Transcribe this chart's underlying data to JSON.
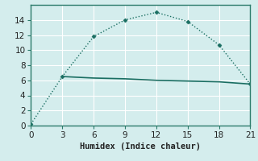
{
  "line1_x": [
    0,
    3,
    6,
    9,
    12,
    15,
    18,
    21
  ],
  "line1_y": [
    0.2,
    6.5,
    11.8,
    14.0,
    15.0,
    13.8,
    10.7,
    5.5
  ],
  "line2_x": [
    3,
    6,
    9,
    12,
    15,
    18,
    21
  ],
  "line2_y": [
    6.5,
    6.3,
    6.2,
    6.0,
    5.9,
    5.8,
    5.5
  ],
  "color": "#1a6e62",
  "bg_color": "#d4eded",
  "grid_color": "#ffffff",
  "grid_minor_color": "#e8f5f5",
  "xlabel": "Humidex (Indice chaleur)",
  "xlim": [
    0,
    21
  ],
  "ylim": [
    0,
    16
  ],
  "xticks": [
    0,
    3,
    6,
    9,
    12,
    15,
    18,
    21
  ],
  "yticks": [
    0,
    2,
    4,
    6,
    8,
    10,
    12,
    14
  ],
  "spine_color": "#2a7a6a",
  "tick_color": "#2a7a6a",
  "label_fontsize": 7.5
}
